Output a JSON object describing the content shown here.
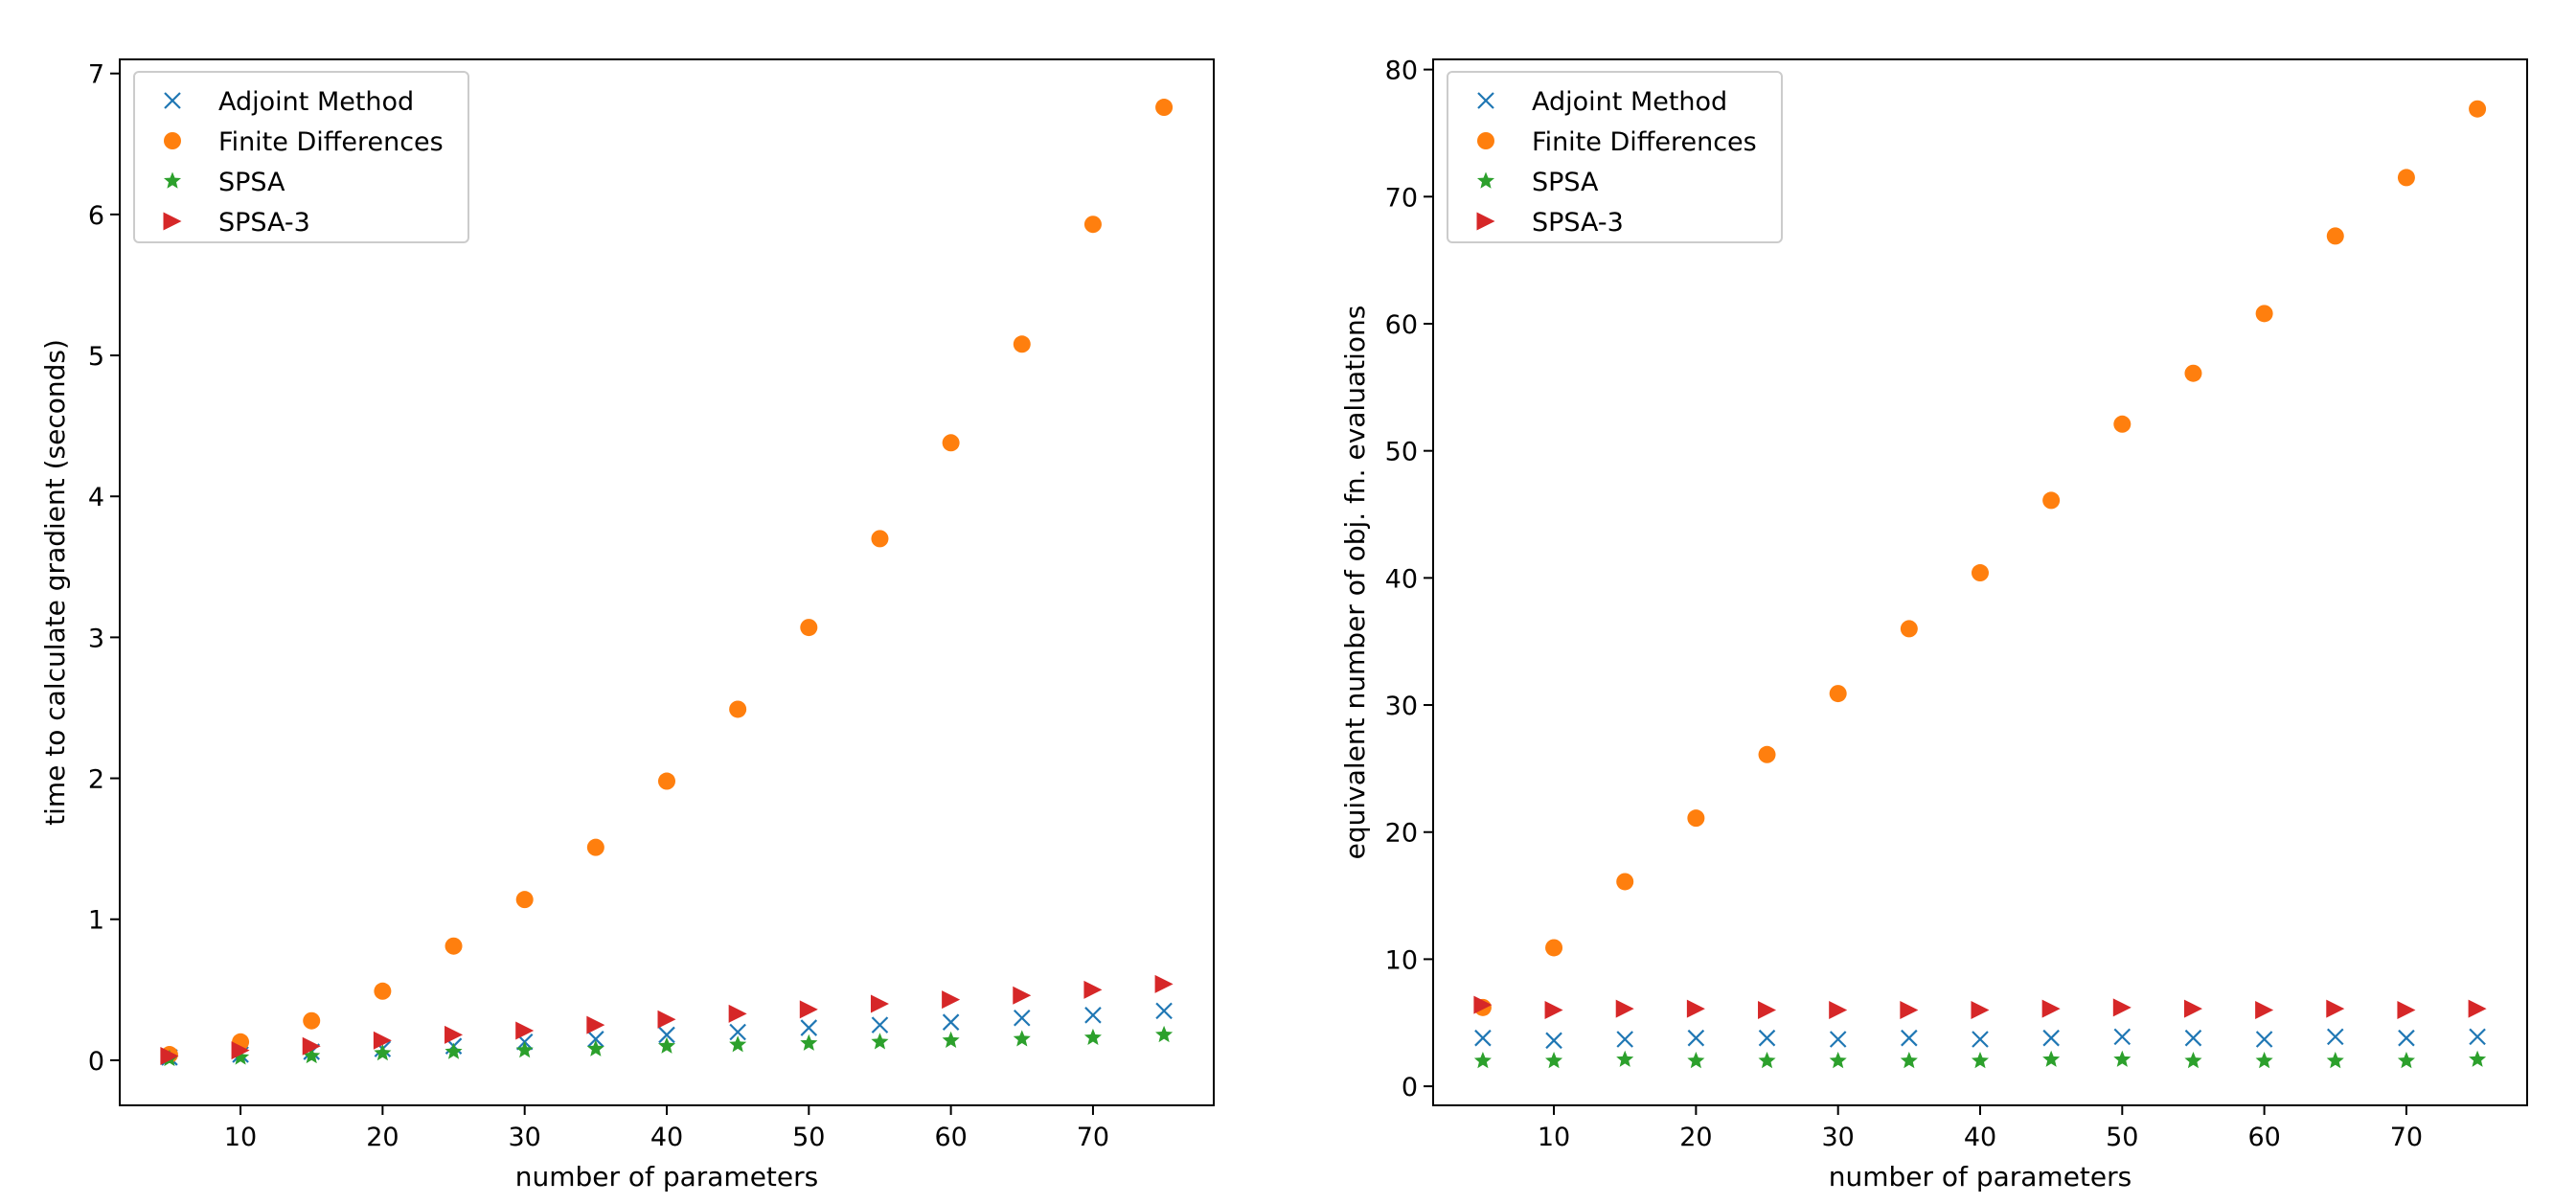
{
  "chart_data": [
    {
      "type": "scatter",
      "xlabel": "number of parameters",
      "ylabel": "time to calculate gradient (seconds)",
      "xlim": [
        1.5,
        78.5
      ],
      "ylim": [
        -0.32,
        7.1
      ],
      "xticks": [
        10,
        20,
        30,
        40,
        50,
        60,
        70
      ],
      "yticks": [
        0,
        1,
        2,
        3,
        4,
        5,
        6,
        7
      ],
      "x": [
        5,
        10,
        15,
        20,
        25,
        30,
        35,
        40,
        45,
        50,
        55,
        60,
        65,
        70,
        75
      ],
      "legend_position": "upper-left",
      "series": [
        {
          "name": "Adjoint Method",
          "marker": "x",
          "color": "#1f77b4",
          "values": [
            0.02,
            0.04,
            0.06,
            0.08,
            0.1,
            0.13,
            0.15,
            0.18,
            0.2,
            0.23,
            0.25,
            0.27,
            0.3,
            0.32,
            0.35
          ]
        },
        {
          "name": "Finite Differences",
          "marker": "circle",
          "color": "#ff7f0e",
          "values": [
            0.04,
            0.13,
            0.28,
            0.49,
            0.81,
            1.14,
            1.51,
            1.98,
            2.49,
            3.07,
            3.7,
            4.38,
            5.08,
            5.93,
            6.76
          ]
        },
        {
          "name": "SPSA",
          "marker": "star",
          "color": "#2ca02c",
          "values": [
            0.01,
            0.02,
            0.03,
            0.05,
            0.06,
            0.07,
            0.08,
            0.1,
            0.11,
            0.12,
            0.13,
            0.14,
            0.15,
            0.16,
            0.18
          ]
        },
        {
          "name": "SPSA-3",
          "marker": "triangle-right",
          "color": "#d62728",
          "values": [
            0.03,
            0.07,
            0.1,
            0.14,
            0.18,
            0.21,
            0.25,
            0.29,
            0.33,
            0.36,
            0.4,
            0.43,
            0.46,
            0.5,
            0.54
          ]
        }
      ]
    },
    {
      "type": "scatter",
      "xlabel": "number of parameters",
      "ylabel": "equivalent number of obj. fn. evaluations",
      "xlim": [
        1.5,
        78.5
      ],
      "ylim": [
        -1.5,
        80.8
      ],
      "xticks": [
        10,
        20,
        30,
        40,
        50,
        60,
        70
      ],
      "yticks": [
        0,
        10,
        20,
        30,
        40,
        50,
        60,
        70,
        80
      ],
      "x": [
        5,
        10,
        15,
        20,
        25,
        30,
        35,
        40,
        45,
        50,
        55,
        60,
        65,
        70,
        75
      ],
      "legend_position": "upper-left",
      "series": [
        {
          "name": "Adjoint Method",
          "marker": "x",
          "color": "#1f77b4",
          "values": [
            3.8,
            3.6,
            3.7,
            3.8,
            3.8,
            3.7,
            3.8,
            3.7,
            3.8,
            3.9,
            3.8,
            3.7,
            3.9,
            3.8,
            3.9
          ]
        },
        {
          "name": "Finite Differences",
          "marker": "circle",
          "color": "#ff7f0e",
          "values": [
            6.2,
            10.9,
            16.1,
            21.1,
            26.1,
            30.9,
            36.0,
            40.4,
            46.1,
            52.1,
            56.1,
            60.8,
            66.9,
            71.5,
            76.9
          ]
        },
        {
          "name": "SPSA",
          "marker": "star",
          "color": "#2ca02c",
          "values": [
            2.0,
            2.0,
            2.1,
            2.0,
            2.0,
            2.0,
            2.0,
            2.0,
            2.1,
            2.1,
            2.0,
            2.0,
            2.0,
            2.0,
            2.1
          ]
        },
        {
          "name": "SPSA-3",
          "marker": "triangle-right",
          "color": "#d62728",
          "values": [
            6.4,
            6.0,
            6.1,
            6.1,
            6.0,
            6.0,
            6.0,
            6.0,
            6.1,
            6.2,
            6.1,
            6.0,
            6.1,
            6.0,
            6.1
          ]
        }
      ]
    }
  ]
}
